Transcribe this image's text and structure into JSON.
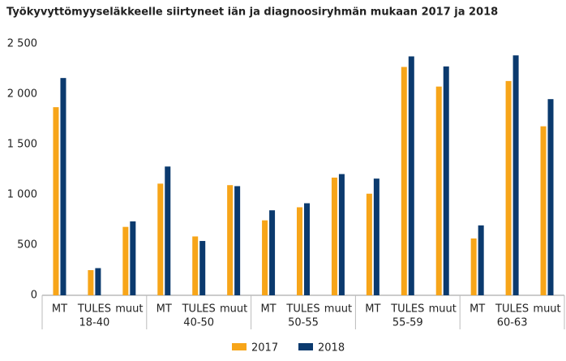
{
  "chart_data": {
    "type": "bar",
    "title": "Työkyvyttömyyseläkkeelle siirtyneet iän ja diagnoosiryhmän mukaan 2017 ja 2018",
    "groups": [
      "18-40",
      "40-50",
      "50-55",
      "55-59",
      "60-63"
    ],
    "categories": [
      "MT",
      "TULES",
      "muut",
      "MT",
      "TULES",
      "muut",
      "MT",
      "TULES",
      "muut",
      "MT",
      "TULES",
      "muut",
      "MT",
      "TULES",
      "muut"
    ],
    "series": [
      {
        "name": "2017",
        "color": "#f7a519",
        "values": [
          1870,
          250,
          680,
          1110,
          585,
          1095,
          745,
          875,
          1170,
          1010,
          2270,
          2075,
          565,
          2130,
          1680
        ]
      },
      {
        "name": "2018",
        "color": "#0b3a6e",
        "values": [
          2160,
          270,
          735,
          1280,
          540,
          1085,
          845,
          915,
          1205,
          1160,
          2375,
          2275,
          695,
          2385,
          1950
        ]
      }
    ],
    "ylim": [
      0,
      2500
    ],
    "yticks": [
      0,
      500,
      {
        "value": 1000,
        "label": "1 000"
      },
      {
        "value": 1500,
        "label": "1 500"
      },
      {
        "value": 2000,
        "label": "2 000"
      },
      {
        "value": 2500,
        "label": "2 500"
      }
    ],
    "grid": false
  }
}
